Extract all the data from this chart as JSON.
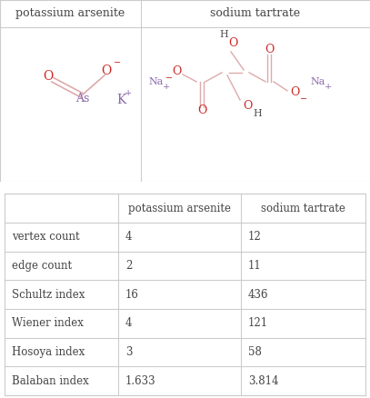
{
  "title1": "potassium arsenite",
  "title2": "sodium tartrate",
  "table_headers": [
    "",
    "potassium arsenite",
    "sodium tartrate"
  ],
  "table_rows": [
    [
      "vertex count",
      "4",
      "12"
    ],
    [
      "edge count",
      "2",
      "11"
    ],
    [
      "Schultz index",
      "16",
      "436"
    ],
    [
      "Wiener index",
      "4",
      "121"
    ],
    [
      "Hosoya index",
      "3",
      "58"
    ],
    [
      "Balaban index",
      "1.633",
      "3.814"
    ]
  ],
  "bg_color": "#ffffff",
  "line_color": "#cccccc",
  "text_color": "#444444",
  "red_color": "#cc2222",
  "purple_color": "#8866aa",
  "bond_color": "#ddaaaa",
  "dark_bond_color": "#aaaaaa",
  "as_color": "#8866aa",
  "k_color": "#8866aa",
  "o_color": "#cc2222",
  "h_color": "#555555",
  "na_color": "#8866aa"
}
